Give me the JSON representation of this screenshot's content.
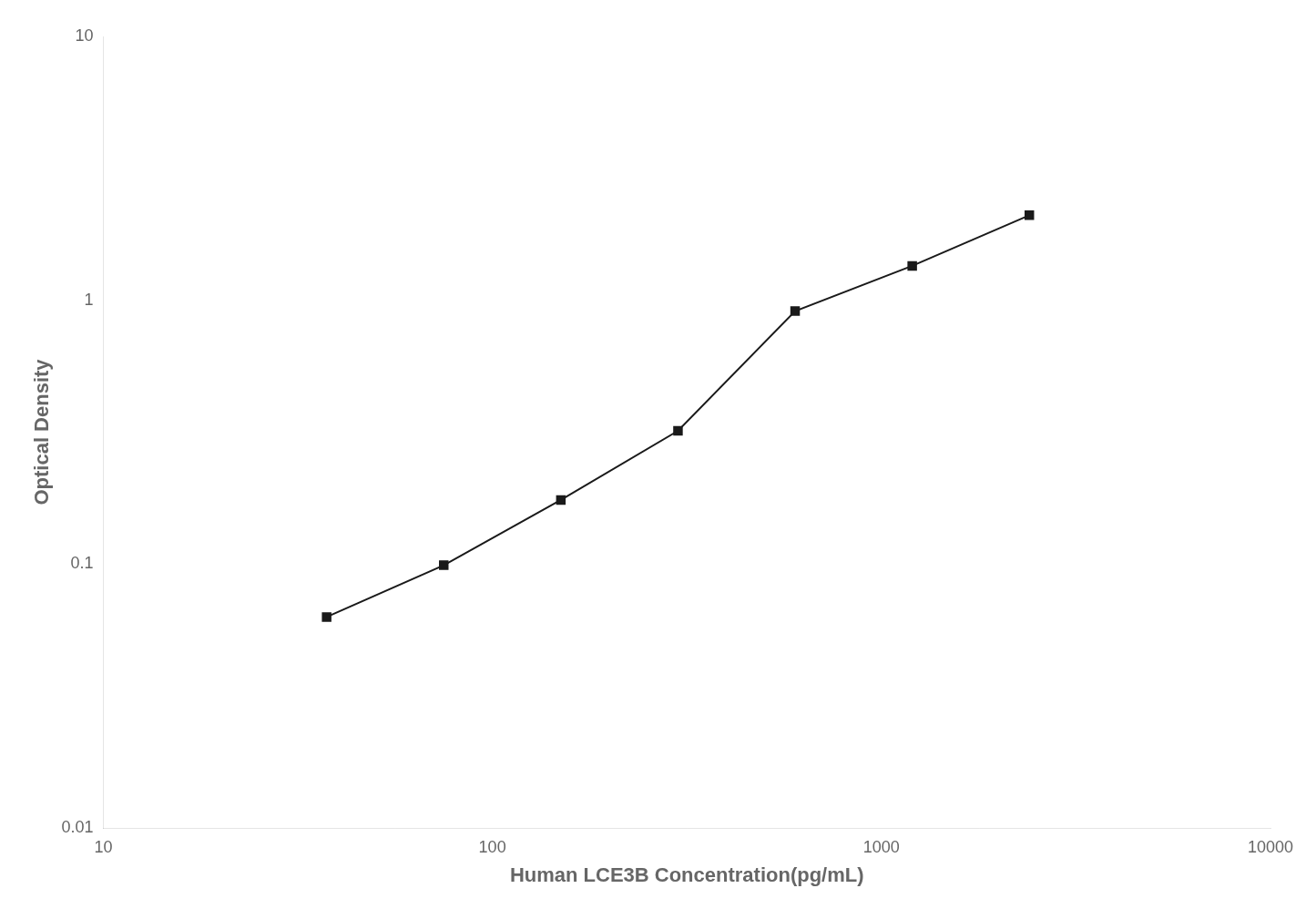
{
  "chart_data": {
    "type": "line",
    "x": [
      37.5,
      75,
      150,
      300,
      600,
      1200,
      2400
    ],
    "values": [
      0.063,
      0.099,
      0.175,
      0.32,
      0.91,
      1.35,
      2.1
    ],
    "xlabel": "Human LCE3B Concentration(pg/mL)",
    "ylabel": "Optical Density",
    "xlim": [
      10,
      10000
    ],
    "ylim": [
      0.01,
      10
    ],
    "xticks": [
      10,
      100,
      1000,
      10000
    ],
    "yticks": [
      0.01,
      0.1,
      1,
      10
    ],
    "log": true,
    "grid": false,
    "color": "#1a1a1a",
    "marker": "square"
  }
}
